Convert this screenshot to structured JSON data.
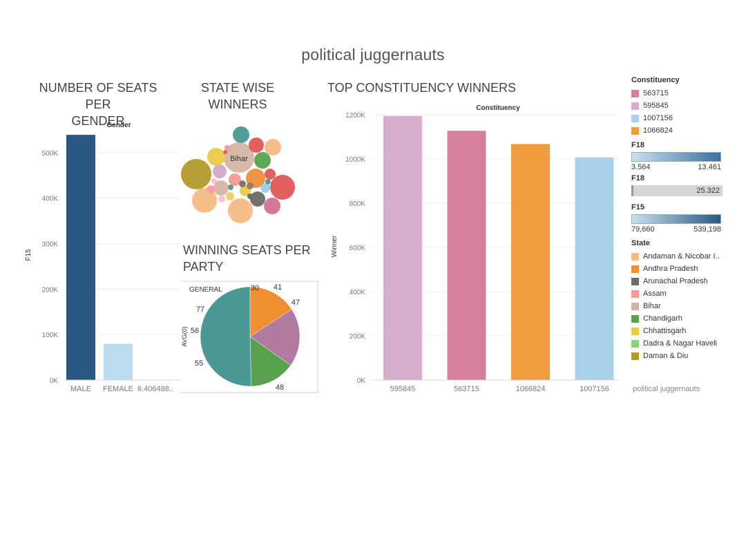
{
  "dashboard": {
    "title": "political juggernauts",
    "footer": "political juggernauts"
  },
  "sheets": {
    "gender": "NUMBER OF SEATS PER\nGENDER",
    "state": "STATE WISE\nWINNERS",
    "party": "WINNING SEATS PER\nPARTY",
    "constituency": "TOP CONSTITUENCY WINNERS"
  },
  "colors": {
    "male": "#2b5783",
    "female": "#b9dcf0",
    "grid": "#ececec"
  },
  "chart_data": [
    {
      "id": "gender",
      "type": "bar",
      "title": "NUMBER OF SEATS PER GENDER",
      "header": "Gender",
      "xlabel": "",
      "ylabel": "F15",
      "categories": [
        "MALE",
        "FEMALE",
        "6.406488.."
      ],
      "values": [
        539198,
        79660,
        0
      ],
      "colors": [
        "#2b5783",
        "#b9dcf0",
        "#ffffff"
      ],
      "ylim": [
        0,
        550000
      ],
      "yticks": [
        0,
        100000,
        200000,
        300000,
        400000,
        500000
      ],
      "ytick_labels": [
        "0K",
        "100K",
        "200K",
        "300K",
        "400K",
        "500K"
      ],
      "grid": true
    },
    {
      "id": "state",
      "type": "bubble",
      "title": "STATE WISE WINNERS",
      "label": "Bihar",
      "bubbles": [
        {
          "state": "Bihar",
          "color": "#d4b5a4"
        },
        {
          "state": "Daman & Diu",
          "color": "#b39a2c"
        },
        {
          "state": "Andaman & Nicobar Islands",
          "color": "#f5bb84"
        },
        {
          "state": "Andhra Pradesh",
          "color": "#ee8d3a"
        },
        {
          "state": "Arunachal Pradesh",
          "color": "#6e6a66"
        },
        {
          "state": "Assam",
          "color": "#f29a93"
        },
        {
          "state": "Chandigarh",
          "color": "#59a14f"
        },
        {
          "state": "Chhattisgarh",
          "color": "#edc948"
        },
        {
          "state": "Dadra & Nagar Haveli",
          "color": "#8cd17d"
        }
      ]
    },
    {
      "id": "party",
      "type": "pie",
      "title": "WINNING SEATS PER PARTY",
      "header": "GENERAL",
      "ylabel": "AVG(0)",
      "labels": [
        "30",
        "41",
        "47",
        "48",
        "55",
        "56",
        "77"
      ],
      "slices": [
        {
          "value": 0.158,
          "color": "#ef8f30"
        },
        {
          "value": 0.19,
          "color": "#b07aa1"
        },
        {
          "value": 0.148,
          "color": "#59a14f"
        },
        {
          "value": 0.504,
          "color": "#4a9995"
        }
      ]
    },
    {
      "id": "constituency",
      "type": "bar",
      "title": "TOP CONSTITUENCY WINNERS",
      "header": "Constituency",
      "xlabel": "",
      "ylabel": "Winner",
      "categories": [
        "595845",
        "563715",
        "1066824",
        "1007156"
      ],
      "values": [
        1195000,
        1128000,
        1068000,
        1008000
      ],
      "colors": [
        "#d7aecb",
        "#d77f9f",
        "#f09c40",
        "#a9d1ea"
      ],
      "ylim": [
        0,
        1210000
      ],
      "yticks": [
        0,
        200000,
        400000,
        600000,
        800000,
        1000000,
        1200000
      ],
      "ytick_labels": [
        "0K",
        "200K",
        "400K",
        "600K",
        "800K",
        "1000K",
        "1200K"
      ],
      "grid": true
    }
  ],
  "legend": {
    "constituency": {
      "title": "Constituency",
      "items": [
        {
          "label": "563715",
          "color": "#d77f9f"
        },
        {
          "label": "595845",
          "color": "#d7aecb"
        },
        {
          "label": "1007156",
          "color": "#a9d1ea"
        },
        {
          "label": "1066824",
          "color": "#f09c40"
        }
      ]
    },
    "f18_gradient": {
      "title": "F18",
      "min": "3.564",
      "max": "13.461",
      "from": "#c6e1f2",
      "to": "#3d6f9e"
    },
    "f18_size": {
      "title": "F18",
      "value": "25.322"
    },
    "f15_gradient": {
      "title": "F15",
      "min": "79,660",
      "max": "539,198",
      "from": "#c6e1f2",
      "to": "#2b5783"
    },
    "state": {
      "title": "State",
      "items": [
        {
          "label": "Andaman & Nicobar I..",
          "color": "#f5bb84"
        },
        {
          "label": "Andhra Pradesh",
          "color": "#ee8d3a"
        },
        {
          "label": "Arunachal Pradesh",
          "color": "#6e6a66"
        },
        {
          "label": "Assam",
          "color": "#f29a93"
        },
        {
          "label": "Bihar",
          "color": "#d4b5a4"
        },
        {
          "label": "Chandigarh",
          "color": "#59a14f"
        },
        {
          "label": "Chhattisgarh",
          "color": "#edc948"
        },
        {
          "label": "Dadra & Nagar Haveli",
          "color": "#8cd17d"
        },
        {
          "label": "Daman & Diu",
          "color": "#b39a2c"
        }
      ]
    }
  }
}
